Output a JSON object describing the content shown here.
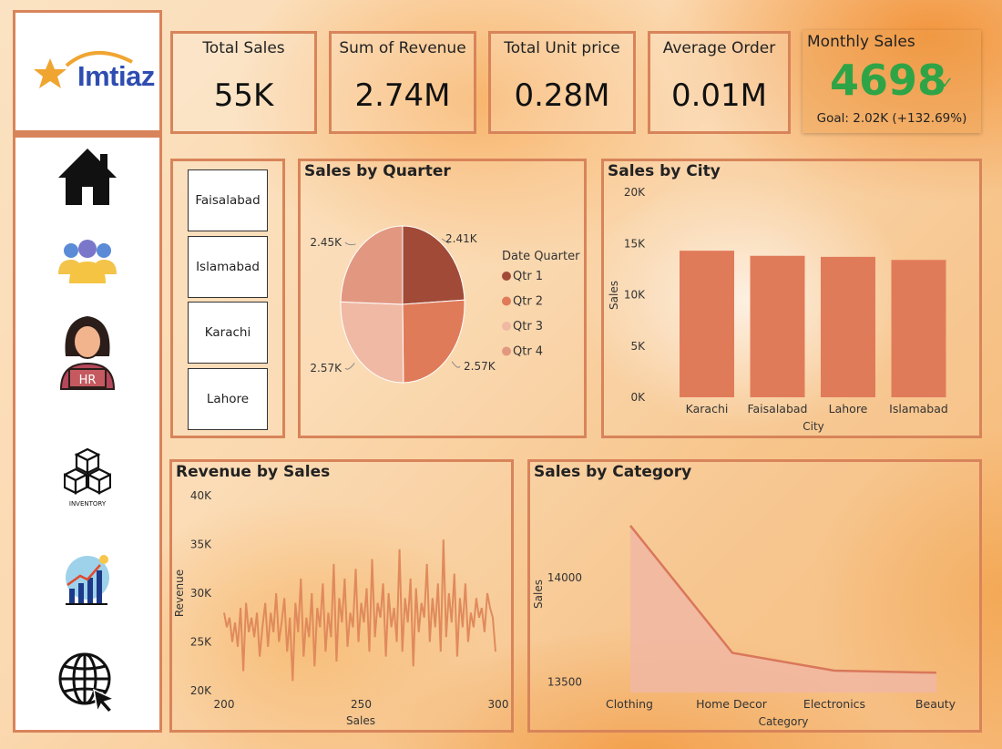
{
  "brand": {
    "name": "Imtiaz"
  },
  "nav": {
    "items": [
      {
        "id": "home",
        "icon": "home-icon"
      },
      {
        "id": "customers",
        "icon": "users-group-icon"
      },
      {
        "id": "hr",
        "icon": "hr-person-icon",
        "label": "HR"
      },
      {
        "id": "inventory",
        "icon": "boxes-icon",
        "label": "INVENTORY"
      },
      {
        "id": "growth",
        "icon": "growth-chart-icon"
      },
      {
        "id": "web",
        "icon": "globe-cursor-icon"
      }
    ]
  },
  "kpis": {
    "total_sales": {
      "title": "Total Sales",
      "value": "55K"
    },
    "revenue": {
      "title": "Sum of Revenue",
      "value": "2.74M"
    },
    "unit_price": {
      "title": "Total Unit price",
      "value": "0.28M"
    },
    "avg_order": {
      "title": "Average Order",
      "value": "0.01M"
    },
    "monthly": {
      "title": "Monthly Sales",
      "value": "4698",
      "goal": "Goal: 2.02K (+132.69%)",
      "status_color": "#2fa447"
    }
  },
  "slicer": {
    "items": [
      "Faisalabad",
      "Islamabad",
      "Karachi",
      "Lahore"
    ]
  },
  "colors": {
    "accent": "#d8845a",
    "bar": "#e07b5a",
    "q1": "#a04a37",
    "q2": "#e07b5a",
    "q3": "#f0b9a4",
    "q4": "#e29880"
  },
  "chart_data": [
    {
      "id": "quarter",
      "type": "pie",
      "title": "Sales by Quarter",
      "legend_title": "Date Quarter",
      "categories": [
        "Qtr 1",
        "Qtr 2",
        "Qtr 3",
        "Qtr 4"
      ],
      "values": [
        2.41,
        2.57,
        2.57,
        2.45
      ],
      "labels": [
        "2.41K",
        "2.57K",
        "2.57K",
        "2.45K"
      ]
    },
    {
      "id": "city",
      "type": "bar",
      "title": "Sales by City",
      "xlabel": "City",
      "ylabel": "Sales",
      "categories": [
        "Karachi",
        "Faisalabad",
        "Lahore",
        "Islamabad"
      ],
      "values": [
        14300,
        13800,
        13700,
        13400
      ],
      "ylim": [
        0,
        20000
      ],
      "yticks": [
        0,
        5000,
        10000,
        15000,
        20000
      ],
      "ytick_labels": [
        "0K",
        "5K",
        "10K",
        "15K",
        "20K"
      ]
    },
    {
      "id": "revenue",
      "type": "line",
      "title": "Revenue by Sales",
      "xlabel": "Sales",
      "ylabel": "Revenue",
      "xlim": [
        200,
        300
      ],
      "ylim": [
        20000,
        40000
      ],
      "xticks": [
        200,
        250,
        300
      ],
      "yticks": [
        20000,
        25000,
        30000,
        35000,
        40000
      ],
      "ytick_labels": [
        "20K",
        "25K",
        "30K",
        "35K",
        "40K"
      ],
      "x": [
        200,
        201,
        202,
        203,
        204,
        205,
        206,
        207,
        208,
        209,
        210,
        211,
        212,
        213,
        214,
        215,
        216,
        217,
        218,
        219,
        220,
        221,
        222,
        223,
        224,
        225,
        226,
        227,
        228,
        229,
        230,
        231,
        232,
        233,
        234,
        235,
        236,
        237,
        238,
        239,
        240,
        241,
        242,
        243,
        244,
        245,
        246,
        247,
        248,
        249,
        250,
        251,
        252,
        253,
        254,
        255,
        256,
        257,
        258,
        259,
        260,
        261,
        262,
        263,
        264,
        265,
        266,
        267,
        268,
        269,
        270,
        271,
        272,
        273,
        274,
        275,
        276,
        277,
        278,
        279,
        280,
        281,
        282,
        283,
        284,
        285,
        286,
        287,
        288,
        289,
        290,
        291,
        292,
        293,
        294,
        295,
        296,
        297,
        298,
        299
      ],
      "y": [
        28000,
        26500,
        27500,
        25000,
        27000,
        24500,
        28500,
        22000,
        29000,
        26000,
        27500,
        25500,
        28000,
        23500,
        26500,
        29000,
        24500,
        28000,
        26000,
        30000,
        25000,
        27000,
        29500,
        24000,
        27500,
        21000,
        29000,
        26000,
        31500,
        23500,
        27500,
        25500,
        30000,
        22500,
        28500,
        26500,
        31000,
        24000,
        28000,
        25500,
        33000,
        23000,
        29500,
        27000,
        31500,
        24500,
        28000,
        26500,
        32500,
        25000,
        29000,
        27000,
        30500,
        24000,
        33500,
        25500,
        29000,
        27500,
        31000,
        23500,
        30000,
        26500,
        28500,
        25000,
        34500,
        24000,
        29500,
        27000,
        31500,
        22500,
        30500,
        26000,
        29000,
        27500,
        33000,
        25000,
        29500,
        26500,
        31000,
        24000,
        35500,
        25500,
        30000,
        27000,
        32000,
        23500,
        29500,
        26500,
        31000,
        25000,
        28000,
        26500,
        29500,
        27500,
        28500,
        26000,
        30000,
        28500,
        27500,
        24000
      ]
    },
    {
      "id": "category",
      "type": "area",
      "title": "Sales by Category",
      "xlabel": "Category",
      "ylabel": "Sales",
      "categories": [
        "Clothing",
        "Home Decor",
        "Electronics",
        "Beauty"
      ],
      "values": [
        14250,
        13640,
        13555,
        13545
      ],
      "ylim": [
        13450,
        14350
      ],
      "yticks": [
        13500,
        14000
      ]
    }
  ]
}
